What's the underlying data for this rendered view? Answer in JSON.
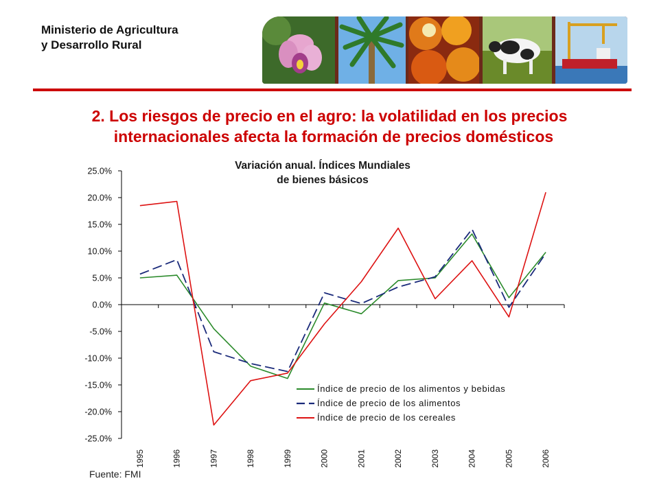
{
  "header": {
    "ministry_line1": "Ministerio de Agricultura",
    "ministry_line2": "y Desarrollo Rural",
    "photos": [
      "orchid-photo",
      "palm-tree-photo",
      "palm-fruit-photo",
      "cow-photo",
      "cargo-ship-photo"
    ]
  },
  "slide": {
    "title_line1": "2. Los riesgos de precio en el agro: la volatilidad en los precios",
    "title_line2": "internacionales afecta la formación de precios domésticos",
    "source": "Fuente: FMI"
  },
  "colors": {
    "accent": "#cc0000",
    "food_bev": "#2a8a2a",
    "food": "#1a2a7a",
    "cereals": "#dd1111"
  },
  "chart_data": {
    "type": "line",
    "title_line1": "Variación anual. Índices Mundiales",
    "title_line2": "de bienes básicos",
    "categories": [
      "1995",
      "1996",
      "1997",
      "1998",
      "1999",
      "2000",
      "2001",
      "2002",
      "2003",
      "2004",
      "2005",
      "2006"
    ],
    "ylim": [
      -25,
      25
    ],
    "yticks": [
      "25.0%",
      "20.0%",
      "15.0%",
      "10.0%",
      "5.0%",
      "0.0%",
      "-5.0%",
      "-10.0%",
      "-15.0%",
      "-20.0%",
      "-25.0%"
    ],
    "ytick_values": [
      25,
      20,
      15,
      10,
      5,
      0,
      -5,
      -10,
      -15,
      -20,
      -25
    ],
    "legend_position": "bottom-right",
    "series": [
      {
        "name": "Índice de precio de los alimentos y bebidas",
        "values": [
          5.0,
          5.5,
          -4.5,
          -11.5,
          -13.8,
          0.3,
          -1.7,
          4.5,
          5.0,
          13.2,
          1.3,
          9.8
        ]
      },
      {
        "name": "Índice de precio de los alimentos",
        "values": [
          5.7,
          8.4,
          -8.8,
          -11.0,
          -12.5,
          2.2,
          0.2,
          3.3,
          5.2,
          14.1,
          -0.5,
          9.6
        ]
      },
      {
        "name": "Índice de precio de los cereales",
        "values": [
          18.5,
          19.3,
          -22.5,
          -14.2,
          -12.8,
          -3.6,
          4.3,
          14.3,
          1.1,
          8.2,
          -2.3,
          21.0
        ]
      }
    ]
  }
}
